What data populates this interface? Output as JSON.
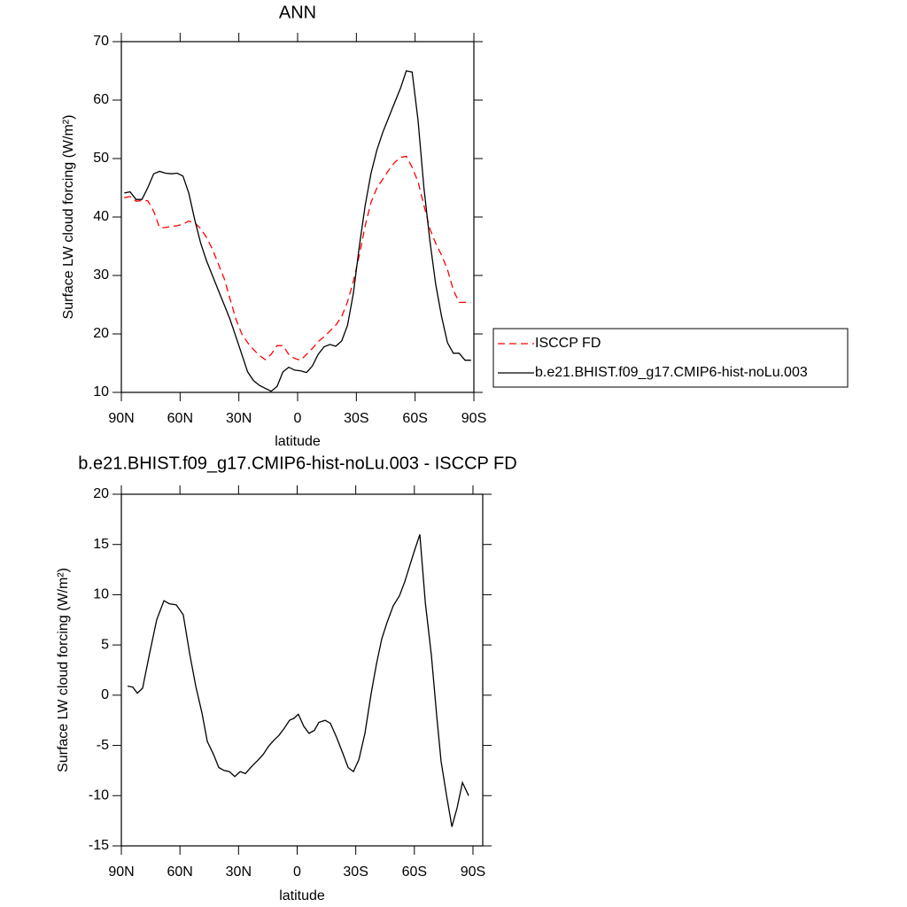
{
  "chart_data": [
    {
      "type": "line",
      "title": "ANN",
      "x_label": "latitude",
      "y_label": "Surface LW cloud forcing (W/m²)",
      "x": [
        88.5,
        85.5,
        82.5,
        79.5,
        76.5,
        73.5,
        70.5,
        67.5,
        64.5,
        61.5,
        58.5,
        55.5,
        52.5,
        49.5,
        46.5,
        43.5,
        40.5,
        37.5,
        34.5,
        31.5,
        28.5,
        25.5,
        22.5,
        19.5,
        16.5,
        13.5,
        10.5,
        7.5,
        4.5,
        1.5,
        -1.5,
        -4.5,
        -7.5,
        -10.5,
        -13.5,
        -16.5,
        -19.5,
        -22.5,
        -25.5,
        -28.5,
        -31.5,
        -34.5,
        -37.5,
        -40.5,
        -43.5,
        -46.5,
        -49.5,
        -52.5,
        -55.5,
        -58.5,
        -61.5,
        -64.5,
        -67.5,
        -70.5,
        -73.5,
        -76.5,
        -79.5,
        -82.5,
        -85.5,
        -88.5
      ],
      "series": [
        {
          "name": "ISCCP FD",
          "color": "#ff0000",
          "line_style": "dashed",
          "values": [
            43.3,
            43.5,
            42.7,
            42.8,
            42.8,
            41.0,
            38.2,
            38.2,
            38.4,
            38.5,
            38.8,
            39.3,
            39.0,
            38.0,
            36.5,
            34.5,
            32.0,
            29.5,
            26.0,
            22.5,
            20.0,
            18.5,
            17.3,
            16.3,
            15.6,
            16.5,
            18.0,
            18.0,
            16.5,
            15.8,
            15.5,
            16.5,
            17.5,
            18.7,
            19.5,
            20.5,
            21.5,
            23.0,
            25.5,
            29.0,
            33.5,
            38.5,
            42.5,
            45.0,
            46.5,
            48.0,
            49.3,
            50.2,
            50.4,
            48.5,
            46.0,
            42.0,
            38.0,
            35.5,
            33.5,
            31.0,
            27.5,
            25.4,
            25.4,
            25.4
          ]
        },
        {
          "name": "b.e21.BHIST.f09_g17.CMIP6-hist-noLu.003",
          "color": "#000000",
          "line_style": "solid",
          "values": [
            44.1,
            44.3,
            43.0,
            43.0,
            45.0,
            47.4,
            47.8,
            47.5,
            47.4,
            47.5,
            47.0,
            44.0,
            39.5,
            35.5,
            32.5,
            30.0,
            27.5,
            25.0,
            22.5,
            19.5,
            16.5,
            13.5,
            12.0,
            11.2,
            10.7,
            10.2,
            11.0,
            13.5,
            14.3,
            13.8,
            13.7,
            13.4,
            14.5,
            16.5,
            17.8,
            18.2,
            17.9,
            18.8,
            21.5,
            27.0,
            35.0,
            42.0,
            47.5,
            51.5,
            54.5,
            57.0,
            59.5,
            62.0,
            65.0,
            64.8,
            56.5,
            45.0,
            36.0,
            28.5,
            23.0,
            18.5,
            16.7,
            16.7,
            15.5,
            15.5
          ]
        }
      ],
      "xlim": [
        90,
        -90
      ],
      "xticks": [
        {
          "value": 90,
          "label": "90N"
        },
        {
          "value": 60,
          "label": "60N"
        },
        {
          "value": 30,
          "label": "30N"
        },
        0,
        {
          "value": -30,
          "label": "30S"
        },
        {
          "value": -60,
          "label": "60S"
        },
        {
          "value": -90,
          "label": "90S"
        }
      ],
      "ylim": [
        10,
        70
      ],
      "yticks": [
        10,
        20,
        30,
        40,
        50,
        60,
        70
      ],
      "legend": "right"
    },
    {
      "type": "line",
      "title": "b.e21.BHIST.f09_g17.CMIP6-hist-noLu.003 - ISCCP FD",
      "x_label": "latitude",
      "y_label": "Surface LW cloud forcing (W/m²)",
      "x": [
        86.8,
        84.1,
        81.8,
        79.1,
        75.5,
        71.9,
        68.2,
        65.5,
        61.9,
        58.3,
        55.1,
        51.9,
        48.7,
        46.0,
        42.8,
        40.1,
        37.4,
        34.7,
        31.9,
        29.2,
        26.5,
        23.3,
        20.2,
        17.4,
        14.7,
        12.0,
        9.3,
        6.6,
        3.9,
        1.6,
        -0.6,
        -3.4,
        -6.1,
        -8.8,
        -11.1,
        -14.3,
        -17.0,
        -20.2,
        -23.4,
        -26.1,
        -28.8,
        -31.6,
        -34.7,
        -37.9,
        -40.6,
        -43.3,
        -46.1,
        -49.2,
        -52.4,
        -55.1,
        -57.8,
        -60.1,
        -62.8,
        -65.6,
        -68.7,
        -71.5,
        -73.7,
        -76.4,
        -79.2,
        -81.9,
        -84.6,
        -87.8
      ],
      "values": [
        0.9,
        0.8,
        0.2,
        0.7,
        4.2,
        7.5,
        9.4,
        9.1,
        9.0,
        8.0,
        4.2,
        0.9,
        -1.8,
        -4.6,
        -5.9,
        -7.2,
        -7.5,
        -7.6,
        -8.1,
        -7.6,
        -7.8,
        -7.1,
        -6.5,
        -5.9,
        -5.1,
        -4.5,
        -4.0,
        -3.3,
        -2.5,
        -2.3,
        -1.9,
        -3.1,
        -3.8,
        -3.5,
        -2.7,
        -2.5,
        -2.8,
        -4.2,
        -5.8,
        -7.2,
        -7.6,
        -6.4,
        -3.8,
        0.2,
        3.1,
        5.6,
        7.3,
        8.9,
        9.9,
        11.3,
        13.0,
        14.4,
        16.0,
        9.2,
        4.0,
        -2.2,
        -6.6,
        -9.9,
        -13.1,
        -11.2,
        -8.7,
        -10.0
      ],
      "color": "#000000",
      "xlim": [
        90,
        -95
      ],
      "xticks": [
        {
          "value": 90,
          "label": "90N"
        },
        {
          "value": 60,
          "label": "60N"
        },
        {
          "value": 30,
          "label": "30N"
        },
        0,
        {
          "value": -30,
          "label": "30S"
        },
        {
          "value": -60,
          "label": "60S"
        },
        {
          "value": -90,
          "label": "90S"
        }
      ],
      "ylim": [
        -15,
        20
      ],
      "yticks": [
        -15,
        -10,
        -5,
        0,
        5,
        10,
        15,
        20
      ]
    }
  ]
}
